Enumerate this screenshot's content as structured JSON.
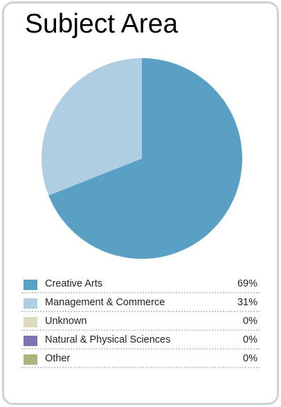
{
  "chart_data": {
    "type": "pie",
    "title": "Subject Area",
    "slices": [
      {
        "label": "Creative Arts",
        "value": 69,
        "percent_label": "69%",
        "color": "#5a9fc4"
      },
      {
        "label": "Management & Commerce",
        "value": 31,
        "percent_label": "31%",
        "color": "#b0cee1"
      },
      {
        "label": "Unknown",
        "value": 0,
        "percent_label": "0%",
        "color": "#ddd9c0"
      },
      {
        "label": "Natural & Physical Sciences",
        "value": 0,
        "percent_label": "0%",
        "color": "#7b71b3"
      },
      {
        "label": "Other",
        "value": 0,
        "percent_label": "0%",
        "color": "#a7b67a"
      }
    ],
    "legend_position": "bottom"
  }
}
